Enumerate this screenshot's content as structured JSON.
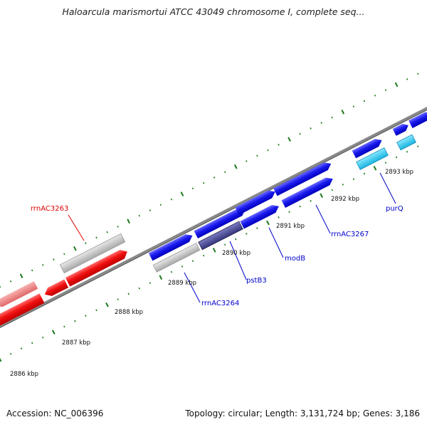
{
  "title": "Haloarcula marismortui ATCC 43049 chromosome I, complete seq...",
  "footer": {
    "accession": "Accession: NC_006396",
    "stats": "Topology: circular; Length: 3,131,724 bp; Genes: 3,186"
  },
  "ruler": {
    "unit_labels": [
      "2886 kbp",
      "2887 kbp",
      "2888 kbp",
      "2889 kbp",
      "2890 kbp",
      "2891 kbp",
      "2892 kbp",
      "2893 kbp"
    ]
  },
  "gene_labels": [
    {
      "text": "rrnAC3263",
      "color": "#dd0000"
    },
    {
      "text": "rrnAC3264",
      "color": "#0000cc"
    },
    {
      "text": "pstB3",
      "color": "#0000cc"
    },
    {
      "text": "modB",
      "color": "#0000cc"
    },
    {
      "text": "rrnAC3267",
      "color": "#0000cc"
    },
    {
      "text": "purQ",
      "color": "#0000cc"
    }
  ],
  "colors": {
    "forward_gene": "#1010ee",
    "forward_selected": "#4a4a9a",
    "reverse_gene": "#ee0000",
    "reverse_faded": "#f08080",
    "cds_light": "#33ccee",
    "grey_gene": "#c4c4c4",
    "backbone": "#888888",
    "ticks": "#1a7a1a"
  }
}
